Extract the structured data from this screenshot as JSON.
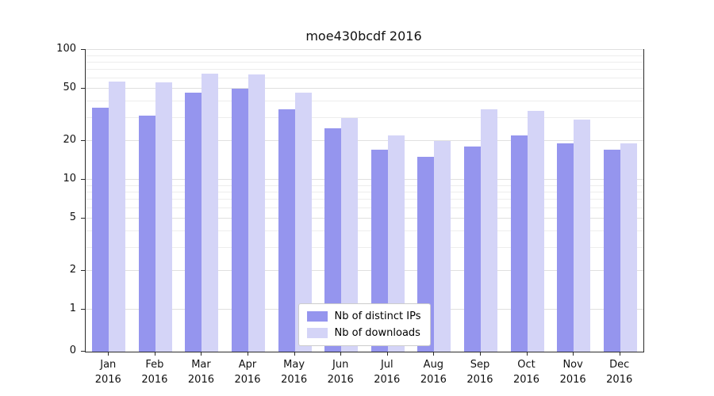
{
  "chart_data": {
    "type": "bar",
    "title": "moe430bcdf 2016",
    "categories": [
      "Jan",
      "Feb",
      "Mar",
      "Apr",
      "May",
      "Jun",
      "Jul",
      "Aug",
      "Sep",
      "Oct",
      "Nov",
      "Dec"
    ],
    "year_label": "2016",
    "series": [
      {
        "name": "Nb of distinct IPs",
        "color": "#9595ee",
        "values": [
          36,
          31,
          47,
          50,
          35,
          25,
          17,
          15,
          18,
          22,
          19,
          17
        ]
      },
      {
        "name": "Nb of downloads",
        "color": "#d4d4f7",
        "values": [
          57,
          56,
          66,
          65,
          47,
          30,
          22,
          20,
          35,
          34,
          29,
          19
        ]
      }
    ],
    "yscale": "symlog",
    "ylim": [
      0,
      100
    ],
    "yticks": [
      0,
      1,
      2,
      5,
      10,
      20,
      50,
      100
    ],
    "minor_yticks": [
      3,
      4,
      6,
      7,
      8,
      9,
      30,
      40,
      60,
      70,
      80,
      90
    ],
    "grid": true,
    "legend_position": "lower center"
  },
  "colors": {
    "grid_major": "#e0e0e0",
    "grid_minor": "#ededed",
    "axis_frame": "#2b2b2b",
    "background": "#ffffff"
  }
}
